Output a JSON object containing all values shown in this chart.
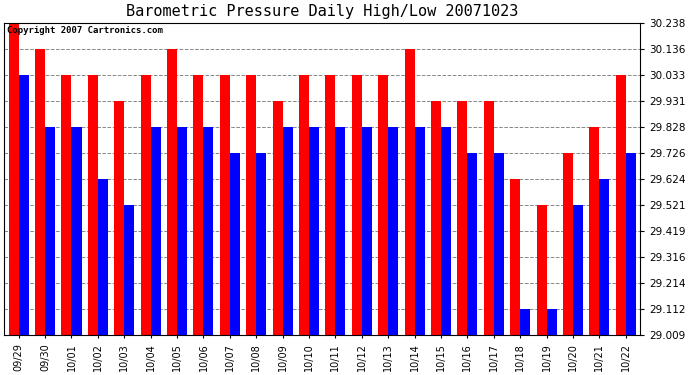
{
  "title": "Barometric Pressure Daily High/Low 20071023",
  "copyright": "Copyright 2007 Cartronics.com",
  "dates": [
    "09/29",
    "09/30",
    "10/01",
    "10/02",
    "10/03",
    "10/04",
    "10/05",
    "10/06",
    "10/07",
    "10/08",
    "10/09",
    "10/10",
    "10/11",
    "10/12",
    "10/13",
    "10/14",
    "10/15",
    "10/16",
    "10/17",
    "10/18",
    "10/19",
    "10/20",
    "10/21",
    "10/22"
  ],
  "highs": [
    30.238,
    30.136,
    30.033,
    30.033,
    29.931,
    30.033,
    30.136,
    30.033,
    30.033,
    30.033,
    29.931,
    30.033,
    30.033,
    30.033,
    30.033,
    30.136,
    29.931,
    29.931,
    29.931,
    29.624,
    29.521,
    29.726,
    29.828,
    30.033
  ],
  "lows": [
    30.033,
    29.828,
    29.828,
    29.624,
    29.521,
    29.828,
    29.828,
    29.828,
    29.726,
    29.726,
    29.828,
    29.828,
    29.828,
    29.828,
    29.828,
    29.828,
    29.828,
    29.726,
    29.726,
    29.112,
    29.112,
    29.521,
    29.624,
    29.726
  ],
  "high_color": "#ff0000",
  "low_color": "#0000ff",
  "bg_color": "#ffffff",
  "grid_color": "#888888",
  "yticks": [
    29.009,
    29.112,
    29.214,
    29.316,
    29.419,
    29.521,
    29.624,
    29.726,
    29.828,
    29.931,
    30.033,
    30.136,
    30.238
  ],
  "ymin": 29.009,
  "ymax": 30.238,
  "bar_width": 0.38,
  "title_fontsize": 11,
  "copyright_fontsize": 6.5
}
